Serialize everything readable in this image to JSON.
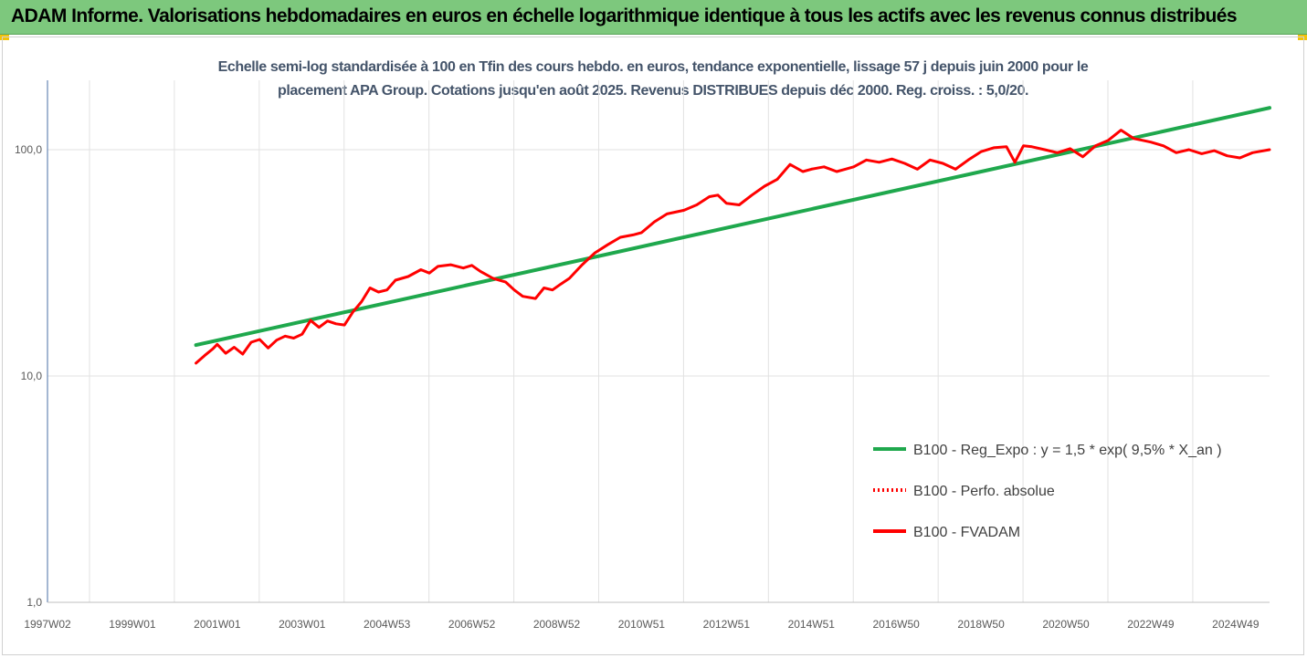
{
  "header": {
    "title": "ADAM Informe. Valorisations hebdomadaires en euros en échelle logarithmique identique à tous les actifs avec les revenus connus distribués"
  },
  "chart_data": {
    "type": "line",
    "title": "",
    "subtitle_line1": "Echelle semi-log standardisée à 100 en Tfin des cours hebdo. en euros, tendance exponentielle, lissage 57 j depuis juin 2000 pour le",
    "subtitle_line2": "placement APA Group. Cotations jusqu'en août 2025. Revenus DISTRIBUES depuis déc 2000. Reg. croiss. : 5,0/20.",
    "y_scale": "log",
    "ylim": [
      1,
      200
    ],
    "xlim": [
      1997.0,
      2025.8
    ],
    "grid": true,
    "legend_position": "lower-right",
    "y_ticks": [
      {
        "value": 1,
        "label": "1,0"
      },
      {
        "value": 10,
        "label": "10,0"
      },
      {
        "value": 100,
        "label": "100,0"
      }
    ],
    "x_ticks": [
      {
        "value": 1997.0,
        "label": "1997W02"
      },
      {
        "value": 1999.0,
        "label": "1999W01"
      },
      {
        "value": 2001.0,
        "label": "2001W01"
      },
      {
        "value": 2003.0,
        "label": "2003W01"
      },
      {
        "value": 2005.0,
        "label": "2004W53"
      },
      {
        "value": 2007.0,
        "label": "2006W52"
      },
      {
        "value": 2009.0,
        "label": "2008W52"
      },
      {
        "value": 2011.0,
        "label": "2010W51"
      },
      {
        "value": 2013.0,
        "label": "2012W51"
      },
      {
        "value": 2015.0,
        "label": "2014W51"
      },
      {
        "value": 2017.0,
        "label": "2016W50"
      },
      {
        "value": 2019.0,
        "label": "2018W50"
      },
      {
        "value": 2021.0,
        "label": "2020W50"
      },
      {
        "value": 2023.0,
        "label": "2022W49"
      },
      {
        "value": 2025.0,
        "label": "2024W49"
      }
    ],
    "series": [
      {
        "name": "B100 - Reg_Expo : y = 1,5 * exp( 9,5% *  X_an )",
        "color": "#1fa84d",
        "style": "solid",
        "x": [
          2000.5,
          2025.8
        ],
        "y": [
          13.7,
          153
        ]
      },
      {
        "name": "B100 - Perfo. absolue",
        "color": "#ff0000",
        "style": "dotted",
        "x": [],
        "y": []
      },
      {
        "name": "B100 - FVADAM",
        "color": "#ff0000",
        "style": "solid",
        "x": [
          2000.5,
          2000.7,
          2000.9,
          2001.0,
          2001.2,
          2001.4,
          2001.6,
          2001.8,
          2002.0,
          2002.2,
          2002.4,
          2002.6,
          2002.8,
          2003.0,
          2003.2,
          2003.4,
          2003.6,
          2003.8,
          2004.0,
          2004.2,
          2004.4,
          2004.6,
          2004.8,
          2005.0,
          2005.2,
          2005.5,
          2005.8,
          2006.0,
          2006.2,
          2006.5,
          2006.8,
          2007.0,
          2007.2,
          2007.5,
          2007.8,
          2008.0,
          2008.2,
          2008.5,
          2008.7,
          2008.9,
          2009.1,
          2009.3,
          2009.6,
          2009.9,
          2010.2,
          2010.5,
          2010.8,
          2011.0,
          2011.3,
          2011.6,
          2011.8,
          2012.0,
          2012.3,
          2012.6,
          2012.8,
          2013.0,
          2013.3,
          2013.6,
          2013.9,
          2014.2,
          2014.5,
          2014.8,
          2015.0,
          2015.3,
          2015.6,
          2015.8,
          2016.0,
          2016.3,
          2016.6,
          2016.9,
          2017.2,
          2017.5,
          2017.8,
          2018.1,
          2018.4,
          2018.7,
          2019.0,
          2019.3,
          2019.6,
          2019.8,
          2020.0,
          2020.2,
          2020.5,
          2020.8,
          2021.1,
          2021.4,
          2021.7,
          2022.0,
          2022.3,
          2022.6,
          2022.8,
          2023.0,
          2023.3,
          2023.6,
          2023.9,
          2024.2,
          2024.5,
          2024.8,
          2025.1,
          2025.4,
          2025.8
        ],
        "y": [
          11.4,
          12.3,
          13.2,
          13.8,
          12.6,
          13.4,
          12.5,
          14.1,
          14.5,
          13.3,
          14.4,
          15.0,
          14.7,
          15.3,
          17.6,
          16.4,
          17.5,
          17.0,
          16.8,
          19.2,
          21.3,
          24.5,
          23.5,
          24.0,
          26.5,
          27.5,
          29.5,
          28.5,
          30.5,
          31.0,
          30.0,
          30.8,
          29.0,
          27.0,
          26.0,
          24.0,
          22.5,
          22.0,
          24.5,
          24.0,
          25.5,
          27.0,
          31.0,
          35.0,
          38.0,
          41.0,
          42.0,
          43.0,
          48.0,
          52.0,
          53.0,
          54.0,
          57.0,
          62.0,
          63.0,
          58.0,
          57.0,
          63.0,
          69.0,
          74.0,
          86.0,
          80.0,
          82.0,
          84.0,
          80.0,
          82.0,
          84.0,
          90.0,
          88.0,
          91.0,
          87.0,
          82.0,
          90.0,
          87.0,
          82.0,
          90.0,
          98.0,
          102.0,
          103.0,
          88.0,
          104.0,
          103.0,
          100.0,
          97.0,
          101.0,
          93.0,
          104.0,
          110.0,
          122.0,
          112.0,
          110.0,
          108.0,
          104.0,
          97.0,
          100.0,
          96.0,
          99.0,
          94.0,
          92.0,
          97.0,
          100.0
        ]
      }
    ]
  }
}
